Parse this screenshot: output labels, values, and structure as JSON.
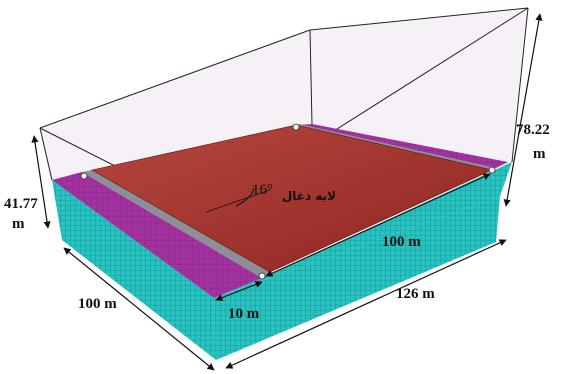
{
  "colors": {
    "mesh_fill": "#27c3c1",
    "mesh_line": "#0f7a7a",
    "magenta_layer": "#9f2f9e",
    "red_surface": "#a93a37",
    "red_surface_dark": "#7e1e1e",
    "wireframe_tint": "#efe6f0",
    "gray_strip": "#8c8f95"
  },
  "labels": {
    "height_left": "41.77",
    "height_left_unit": "m",
    "height_right": "78.22",
    "height_right_unit": "m",
    "width_front": "100 m",
    "width_gap": "10 m",
    "length_side": "126 m",
    "length_slope": "100 m",
    "angle": "16°",
    "layer_name": "لایه ذغال"
  }
}
